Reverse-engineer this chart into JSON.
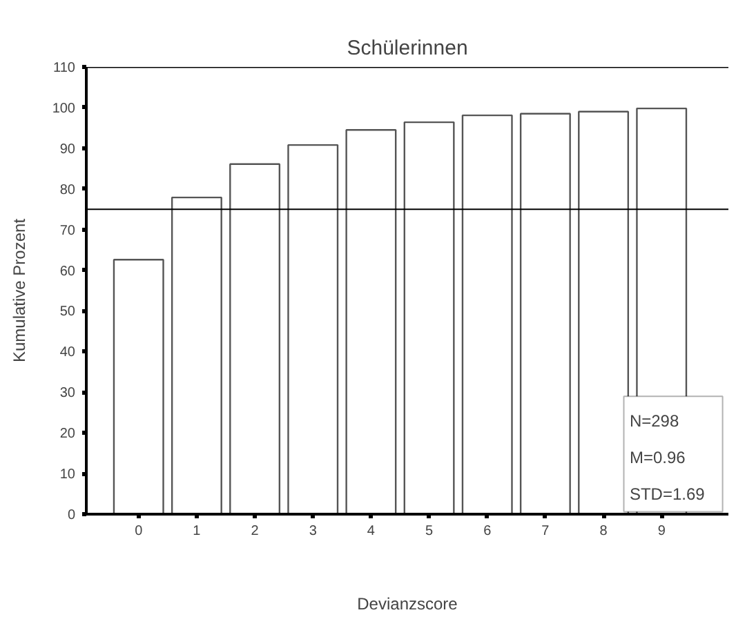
{
  "chart_data": {
    "type": "bar",
    "title": "Schülerinnen",
    "xlabel": "Devianzscore",
    "ylabel": "Kumulative Prozent",
    "categories": [
      "0",
      "1",
      "2",
      "3",
      "4",
      "5",
      "6",
      "7",
      "8",
      "9"
    ],
    "values": [
      62.6,
      77.9,
      86.1,
      90.8,
      94.5,
      96.4,
      98.1,
      98.5,
      99.0,
      99.8
    ],
    "color": "#ffffff",
    "ylim": [
      0,
      110
    ],
    "yticks": [
      0,
      10,
      20,
      30,
      40,
      50,
      60,
      70,
      80,
      90,
      100,
      110
    ],
    "ref_lines": [
      {
        "axis": "y",
        "value": 75,
        "color": "#000000"
      }
    ],
    "annotations": [
      "N=298",
      "M=0.96",
      "STD=1.69"
    ],
    "grid": false
  }
}
